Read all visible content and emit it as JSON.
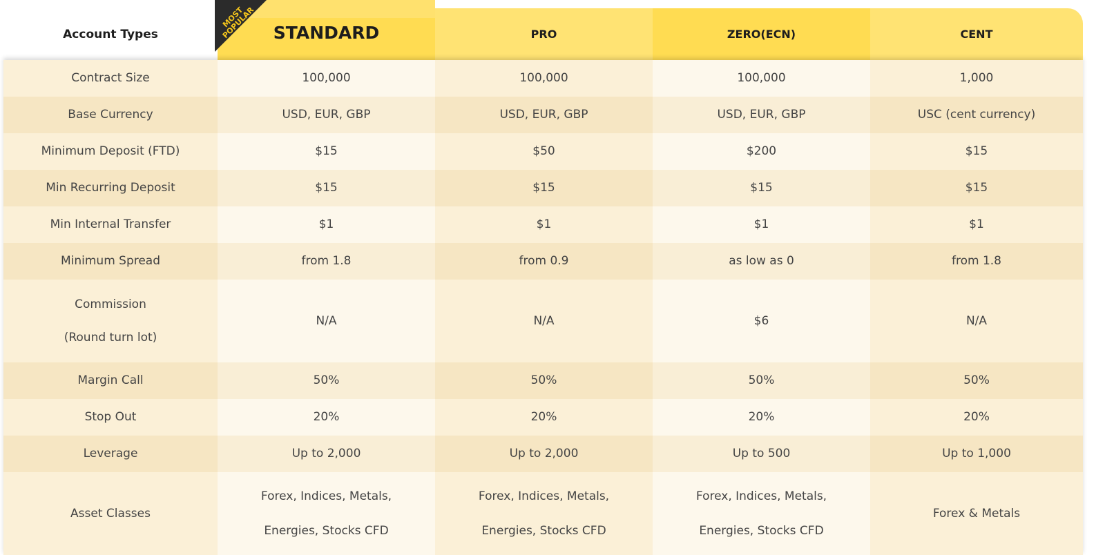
{
  "header": {
    "label": "Account Types",
    "badge": "MOST\nPOPULAR",
    "columns": [
      "STANDARD",
      "PRO",
      "ZERO(ECN)",
      "CENT"
    ]
  },
  "colors": {
    "header_primary": "#ffdc52",
    "header_secondary": "#ffe373",
    "badge": "#2b2b2b",
    "badge_text": "#f5c61c"
  },
  "rows": [
    {
      "label": "Contract Size",
      "values": [
        "100,000",
        "100,000",
        "100,000",
        "1,000"
      ]
    },
    {
      "label": "Base Currency",
      "values": [
        "USD, EUR, GBP",
        "USD, EUR, GBP",
        "USD, EUR, GBP",
        "USC (cent currency)"
      ]
    },
    {
      "label": "Minimum Deposit (FTD)",
      "values": [
        "$15",
        "$50",
        "$200",
        "$15"
      ]
    },
    {
      "label": "Min Recurring Deposit",
      "values": [
        "$15",
        "$15",
        "$15",
        "$15"
      ]
    },
    {
      "label": "Min Internal Transfer",
      "values": [
        "$1",
        "$1",
        "$1",
        "$1"
      ]
    },
    {
      "label": "Minimum Spread",
      "values": [
        "from 1.8",
        "from 0.9",
        "as low as 0",
        "from 1.8"
      ]
    },
    {
      "label": "Commission\n\n(Round turn lot)",
      "values": [
        "N/A",
        "N/A",
        "$6",
        "N/A"
      ]
    },
    {
      "label": "Margin Call",
      "values": [
        "50%",
        "50%",
        "50%",
        "50%"
      ]
    },
    {
      "label": "Stop Out",
      "values": [
        "20%",
        "20%",
        "20%",
        "20%"
      ]
    },
    {
      "label": "Leverage",
      "values": [
        "Up to 2,000",
        "Up to 2,000",
        "Up to 500",
        "Up to 1,000"
      ]
    },
    {
      "label": "Asset Classes",
      "values": [
        "Forex, Indices, Metals,\n\nEnergies, Stocks CFD",
        "Forex, Indices, Metals,\n\nEnergies, Stocks CFD",
        "Forex, Indices, Metals,\n\nEnergies, Stocks CFD",
        "Forex & Metals"
      ]
    }
  ]
}
